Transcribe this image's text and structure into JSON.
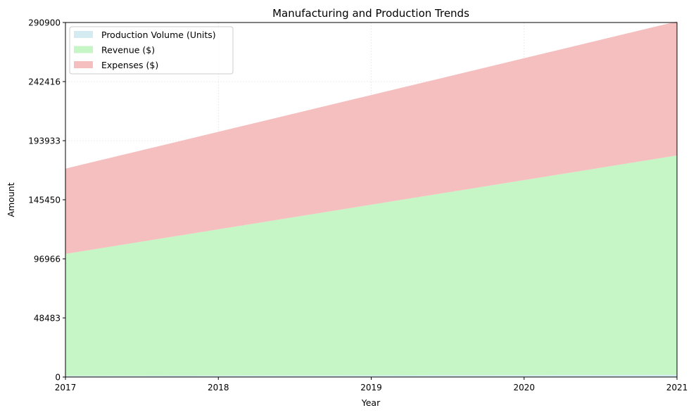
{
  "chart_data": {
    "type": "area",
    "stacked": true,
    "title": "Manufacturing and Production Trends",
    "xlabel": "Year",
    "ylabel": "Amount",
    "x": [
      "2017",
      "2018",
      "2019",
      "2020",
      "2021"
    ],
    "ylim": [
      0,
      290900
    ],
    "yticks": [
      "0",
      "48483",
      "96966",
      "145450",
      "193933",
      "242416",
      "290900"
    ],
    "grid": true,
    "legend_position": "top-left",
    "series": [
      {
        "name": "Production Volume (Units)",
        "color": "#d4ebf2",
        "values": [
          1000,
          1200,
          1400,
          1600,
          1800
        ]
      },
      {
        "name": "Revenue ($)",
        "color": "#c6f5c6",
        "values": [
          100000,
          120000,
          140000,
          160000,
          180000
        ]
      },
      {
        "name": "Expenses ($)",
        "color": "#f5bfbf",
        "values": [
          70000,
          80000,
          90000,
          100000,
          110000
        ]
      }
    ]
  }
}
